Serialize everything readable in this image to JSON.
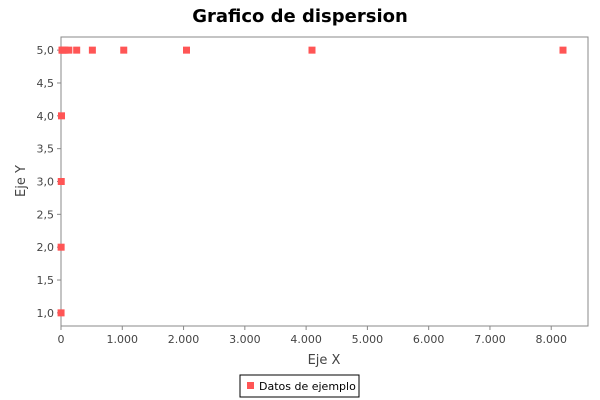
{
  "chart_data": {
    "type": "scatter",
    "title": "Grafico de dispersion",
    "xlabel": "Eje X",
    "ylabel": "Eje Y",
    "xlim": [
      0,
      8600
    ],
    "ylim": [
      0.8,
      5.2
    ],
    "xticks": [
      0,
      1000,
      2000,
      3000,
      4000,
      5000,
      6000,
      7000,
      8000
    ],
    "xtick_labels": [
      "0",
      "1.000",
      "2.000",
      "3.000",
      "4.000",
      "5.000",
      "6.000",
      "7.000",
      "8.000"
    ],
    "yticks": [
      1.0,
      1.5,
      2.0,
      2.5,
      3.0,
      3.5,
      4.0,
      4.5,
      5.0
    ],
    "ytick_labels": [
      "1,0",
      "1,5",
      "2,0",
      "2,5",
      "3,0",
      "3,5",
      "4,0",
      "4,5",
      "5,0"
    ],
    "grid": false,
    "legend_position": "bottom-center",
    "series": [
      {
        "name": "Datos de ejemplo",
        "color": "#ff5555",
        "marker": "square",
        "x": [
          1,
          2,
          4,
          8,
          16,
          32,
          64,
          128,
          256,
          512,
          1024,
          2048,
          4096,
          8192
        ],
        "y": [
          1,
          2,
          3,
          4,
          5,
          5,
          5,
          5,
          5,
          5,
          5,
          5,
          5,
          5
        ]
      }
    ]
  }
}
